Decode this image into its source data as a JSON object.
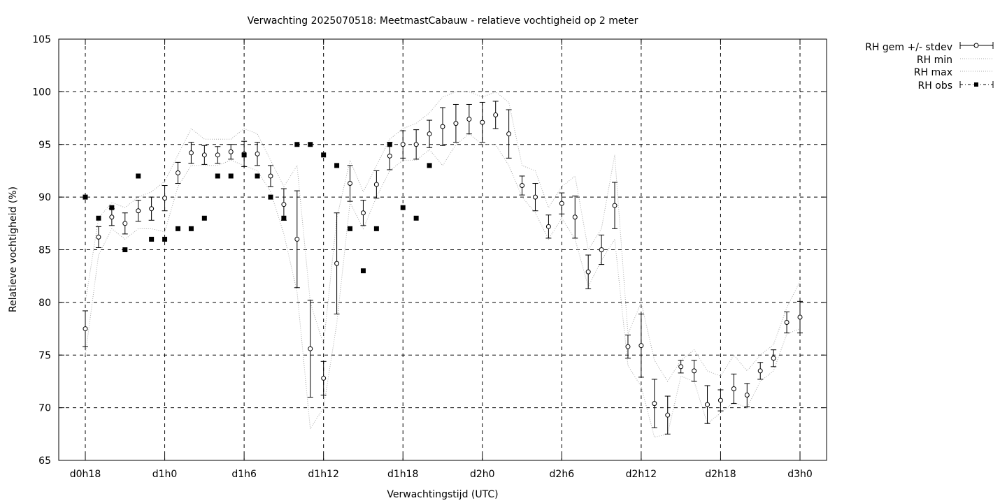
{
  "chart_data": {
    "type": "line",
    "title": "Verwachting 2025070518: MeetmastCabauw - relatieve vochtigheid op 2 meter",
    "xlabel": "Verwachtingstijd (UTC)",
    "ylabel": "Relatieve vochtigheid (%)",
    "xlim": [
      16,
      70
    ],
    "ylim": [
      65,
      105
    ],
    "grid": true,
    "legend_position": "outside-top-right",
    "x_ticks": [
      {
        "value": 18,
        "label": "d0h18"
      },
      {
        "value": 24,
        "label": "d1h0"
      },
      {
        "value": 30,
        "label": "d1h6"
      },
      {
        "value": 36,
        "label": "d1h12"
      },
      {
        "value": 42,
        "label": "d1h18"
      },
      {
        "value": 48,
        "label": "d2h0"
      },
      {
        "value": 54,
        "label": "d2h6"
      },
      {
        "value": 60,
        "label": "d2h12"
      },
      {
        "value": 66,
        "label": "d2h18"
      },
      {
        "value": 72,
        "label": "d3h0"
      }
    ],
    "y_ticks": [
      65,
      70,
      75,
      80,
      85,
      90,
      95,
      100,
      105
    ],
    "legend": [
      "RH gem +/- stdev",
      "RH min",
      "RH max",
      "RH obs"
    ],
    "x": [
      18,
      19,
      20,
      21,
      22,
      23,
      24,
      25,
      26,
      27,
      28,
      29,
      30,
      31,
      32,
      33,
      34,
      35,
      36,
      37,
      38,
      39,
      40,
      41,
      42,
      43,
      44,
      45,
      46,
      47,
      48,
      49,
      50,
      51,
      52,
      53,
      54,
      55,
      56,
      57,
      58,
      59,
      60,
      61,
      62,
      63,
      64,
      65,
      66,
      67,
      68,
      69,
      70,
      71,
      72
    ],
    "series": [
      {
        "name": "RH gem +/- stdev",
        "mean": [
          77.5,
          86.2,
          88.1,
          87.5,
          88.7,
          88.9,
          89.9,
          92.3,
          94.2,
          94.0,
          94.0,
          94.3,
          94.1,
          94.1,
          92.0,
          89.3,
          86.0,
          75.6,
          72.8,
          83.7,
          91.3,
          88.5,
          91.2,
          93.9,
          95.0,
          95.0,
          96.0,
          96.7,
          97.0,
          97.4,
          97.1,
          97.8,
          96.0,
          91.1,
          90.0,
          87.2,
          89.4,
          88.1,
          82.9,
          85.0,
          89.2,
          75.8,
          75.9,
          70.4,
          69.3,
          73.9,
          73.5,
          70.3,
          70.7,
          71.8,
          71.2,
          73.5,
          74.7,
          78.1,
          78.6
        ],
        "stdev": [
          1.7,
          1.0,
          0.8,
          1.0,
          1.0,
          1.1,
          1.2,
          1.0,
          1.0,
          0.9,
          0.8,
          0.7,
          1.2,
          1.1,
          1.0,
          1.5,
          4.6,
          4.6,
          1.6,
          4.8,
          1.7,
          1.2,
          1.3,
          1.3,
          1.3,
          1.4,
          1.3,
          1.8,
          1.8,
          1.4,
          1.9,
          1.3,
          2.3,
          0.9,
          1.3,
          1.1,
          1.0,
          2.0,
          1.6,
          1.4,
          2.2,
          1.1,
          3.0,
          2.3,
          1.8,
          0.6,
          1.0,
          1.8,
          1.0,
          1.4,
          1.1,
          0.8,
          0.8,
          1.0,
          1.5
        ]
      },
      {
        "name": "RH min",
        "values": [
          75.0,
          84.5,
          87.0,
          86.0,
          87.0,
          87.0,
          86.7,
          91.0,
          93.0,
          93.0,
          93.0,
          93.5,
          93.0,
          92.5,
          90.5,
          86.5,
          81.0,
          68.0,
          70.0,
          78.0,
          89.5,
          87.0,
          90.0,
          92.5,
          93.5,
          93.5,
          94.5,
          93.0,
          95.0,
          96.0,
          95.0,
          95.0,
          93.0,
          90.0,
          88.5,
          86.0,
          88.0,
          86.0,
          81.5,
          84.0,
          86.0,
          74.0,
          72.0,
          67.2,
          67.5,
          73.0,
          72.5,
          68.5,
          69.5,
          70.5,
          70.0,
          72.5,
          73.5,
          77.0,
          77.5
        ]
      },
      {
        "name": "RH max",
        "values": [
          80.0,
          88.0,
          89.5,
          89.0,
          90.0,
          90.5,
          91.5,
          94.0,
          96.5,
          95.5,
          95.5,
          95.5,
          96.5,
          96.0,
          93.5,
          91.0,
          93.0,
          80.0,
          76.0,
          88.0,
          93.5,
          90.5,
          93.0,
          95.5,
          96.5,
          97.0,
          98.0,
          99.5,
          100.0,
          100.0,
          99.5,
          100.0,
          99.0,
          93.0,
          92.5,
          89.0,
          91.0,
          92.0,
          85.0,
          87.0,
          94.0,
          77.0,
          80.0,
          74.5,
          72.5,
          74.5,
          75.5,
          73.5,
          73.0,
          75.0,
          73.5,
          75.0,
          76.0,
          79.5,
          82.0
        ]
      },
      {
        "name": "RH obs",
        "x": [
          18,
          19,
          20,
          21,
          22,
          23,
          24,
          25,
          26,
          27,
          28,
          29,
          30,
          31,
          32,
          33,
          34,
          35,
          36,
          37,
          38,
          39,
          40,
          41,
          42,
          43,
          44
        ],
        "values": [
          90,
          88,
          89,
          85,
          92,
          86,
          86,
          87,
          87,
          88,
          92,
          92,
          94,
          92,
          90,
          88,
          95,
          95,
          94,
          93,
          87,
          83,
          87,
          95,
          89,
          88,
          93
        ]
      }
    ]
  }
}
